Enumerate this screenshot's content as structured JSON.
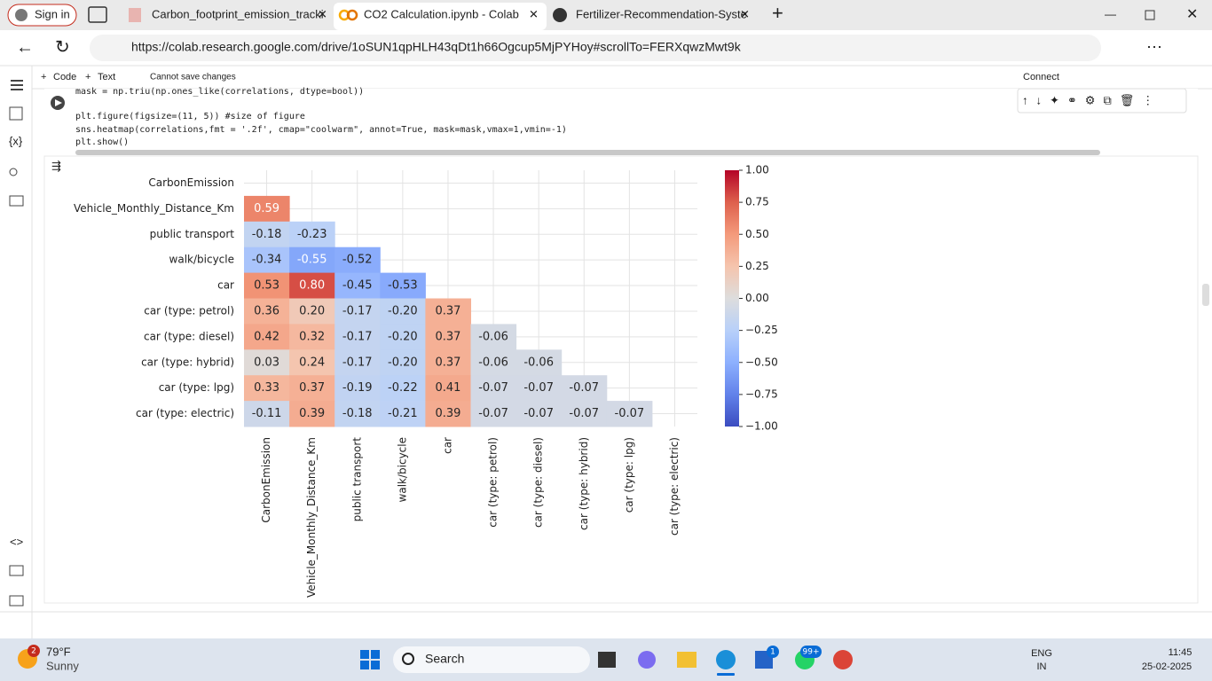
{
  "browser": {
    "profile": "Sign in",
    "tabs": [
      "Carbon_footprint_emission_tracki",
      "CO2 Calculation.ipynb - Colab",
      "Fertilizer-Recommendation-Syste"
    ],
    "url": "https://colab.research.google.com/drive/1oSUN1qpHLH43qDt1h66Ogcup5MjPYHoy#scrollTo=FERXqwzMwt9k"
  },
  "colab": {
    "toolbar": [
      "Code",
      "Text",
      "Cannot save changes"
    ],
    "connect": "Connect",
    "code": [
      "mask = np.triu(np.ones_like(correlations, dtype=bool))",
      "plt.figure(figsize=(11, 5))  #size of figure",
      "sns.heatmap(correlations,fmt = '.2f', cmap=\"coolwarm\", annot=True, mask=mask,vmax=1,vmin=-1)",
      "plt.show()"
    ]
  },
  "chart_data": {
    "type": "heatmap",
    "rows": [
      "CarbonEmission",
      "Vehicle_Monthly_Distance_Km",
      "public transport",
      "walk/bicycle",
      "car",
      "car (type: petrol)",
      "car (type: diesel)",
      "car (type: hybrid)",
      "car (type: lpg)",
      "car (type: electric)"
    ],
    "columns": [
      "CarbonEmission",
      "Vehicle_Monthly_Distance_Km",
      "public transport",
      "walk/bicycle",
      "car",
      "car (type: petrol)",
      "car (type: diesel)",
      "car (type: hybrid)",
      "car (type: lpg)",
      "car (type: electric)"
    ],
    "values": [
      [
        null,
        null,
        null,
        null,
        null,
        null,
        null,
        null,
        null,
        null
      ],
      [
        0.59,
        null,
        null,
        null,
        null,
        null,
        null,
        null,
        null,
        null
      ],
      [
        -0.18,
        -0.23,
        null,
        null,
        null,
        null,
        null,
        null,
        null,
        null
      ],
      [
        -0.34,
        -0.55,
        -0.52,
        null,
        null,
        null,
        null,
        null,
        null,
        null
      ],
      [
        0.53,
        0.8,
        -0.45,
        -0.53,
        null,
        null,
        null,
        null,
        null,
        null
      ],
      [
        0.36,
        0.2,
        -0.17,
        -0.2,
        0.37,
        null,
        null,
        null,
        null,
        null
      ],
      [
        0.42,
        0.32,
        -0.17,
        -0.2,
        0.37,
        -0.06,
        null,
        null,
        null,
        null
      ],
      [
        0.03,
        0.24,
        -0.17,
        -0.2,
        0.37,
        -0.06,
        -0.06,
        null,
        null,
        null
      ],
      [
        0.33,
        0.37,
        -0.19,
        -0.22,
        0.41,
        -0.07,
        -0.07,
        -0.07,
        null,
        null
      ],
      [
        -0.11,
        0.39,
        -0.18,
        -0.21,
        0.39,
        -0.07,
        -0.07,
        -0.07,
        -0.07,
        null
      ]
    ],
    "value_labels": [
      [
        null,
        null,
        null,
        null,
        null,
        null,
        null,
        null,
        null,
        null
      ],
      [
        "0.59",
        null,
        null,
        null,
        null,
        null,
        null,
        null,
        null,
        null
      ],
      [
        "-0.18",
        "-0.23",
        null,
        null,
        null,
        null,
        null,
        null,
        null,
        null
      ],
      [
        "-0.34",
        "-0.55",
        "-0.52",
        null,
        null,
        null,
        null,
        null,
        null,
        null
      ],
      [
        "0.53",
        "0.80",
        "-0.45",
        "-0.53",
        null,
        null,
        null,
        null,
        null,
        null
      ],
      [
        "0.36",
        "0.20",
        "-0.17",
        "-0.20",
        "0.37",
        null,
        null,
        null,
        null,
        null
      ],
      [
        "0.42",
        "0.32",
        "-0.17",
        "-0.20",
        "0.37",
        "-0.06",
        null,
        null,
        null,
        null
      ],
      [
        "0.03",
        "0.24",
        "-0.17",
        "-0.20",
        "0.37",
        "-0.06",
        "-0.06",
        null,
        null,
        null
      ],
      [
        "0.33",
        "0.37",
        "-0.19",
        "-0.22",
        "0.41",
        "-0.07",
        "-0.07",
        "-0.07",
        null,
        null
      ],
      [
        "-0.11",
        "0.39",
        "-0.18",
        "-0.21",
        "0.39",
        "-0.07",
        "-0.07",
        "-0.07",
        "-0.07",
        null
      ]
    ],
    "colormap": "coolwarm",
    "clim": [
      -1,
      1
    ],
    "cticks": [
      {
        "value": 1,
        "label": "1.00"
      },
      {
        "value": 0.75,
        "label": "0.75"
      },
      {
        "value": 0.5,
        "label": "0.50"
      },
      {
        "value": 0.25,
        "label": "0.25"
      },
      {
        "value": 0,
        "label": "0.00"
      },
      {
        "value": -0.25,
        "label": "−0.25"
      },
      {
        "value": -0.5,
        "label": "−0.50"
      },
      {
        "value": -0.75,
        "label": "−0.75"
      },
      {
        "value": -1,
        "label": "−1.00"
      }
    ],
    "grid": true
  },
  "taskbar": {
    "weather_badge": "2",
    "temperature": "79°F",
    "condition": "Sunny",
    "search": "Search",
    "badges": [
      "1",
      "99+"
    ],
    "language": [
      "ENG",
      "IN"
    ],
    "time": "11:45",
    "date": "25-02-2025"
  }
}
